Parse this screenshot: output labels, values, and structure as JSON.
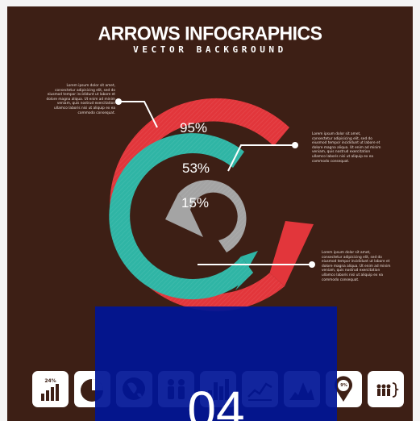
{
  "header": {
    "title": "ARROWS INFOGRAPHICS",
    "subtitle": "VECTOR BACKGROUND"
  },
  "rings": [
    {
      "label": "95%",
      "value": 95,
      "color": "#e2363b"
    },
    {
      "label": "53%",
      "value": 53,
      "color": "#2fb5a5"
    },
    {
      "label": "15%",
      "value": 15,
      "color": "#a4a4a4"
    }
  ],
  "notes": [
    "Lorem ipsum dolor sit amet, consectetur adipisicing elit, sed do eiusmod tempor incididunt ut labore et dolore magna aliqua. Ut enim ad minim veniam, quis nostrud exercitation ullamco laboris nisi ut aliquip ex ea commodo consequat.",
    "Lorem ipsum dolor sit amet, consectetur adipisicing elit, sed do eiusmod tempor incididunt ut labore et dolore magna aliqua. Ut enim ad minim veniam, quis nostrud exercitation ullamco laboris nisi ut aliquip ex ea commodo consequat.",
    "Lorem ipsum dolor sit amet, consectetur adipisicing elit, sed do eiusmod tempor incididunt ut labore et dolore magna aliqua. Ut enim ad minim veniam, quis nostrud exercitation ullamco laboris nisi ut aliquip ex ea commodo consequat."
  ],
  "icons": [
    {
      "name": "bar-chart-icon",
      "caption": "24%"
    },
    {
      "name": "pie-chart-icon",
      "caption": ""
    },
    {
      "name": "globe-icon",
      "caption": ""
    },
    {
      "name": "people-icon",
      "caption": ""
    },
    {
      "name": "column-chart-icon",
      "caption": ""
    },
    {
      "name": "line-chart-icon",
      "caption": ""
    },
    {
      "name": "mountain-chart-icon",
      "caption": ""
    },
    {
      "name": "map-pin-icon",
      "caption": "9%"
    },
    {
      "name": "group-icon",
      "caption": ""
    }
  ],
  "overlay": {
    "text": "04"
  },
  "colors": {
    "background": "#3d1f15",
    "overlay": "#0014a0",
    "red": "#e2363b",
    "teal": "#2fb5a5",
    "gray": "#a4a4a4"
  }
}
